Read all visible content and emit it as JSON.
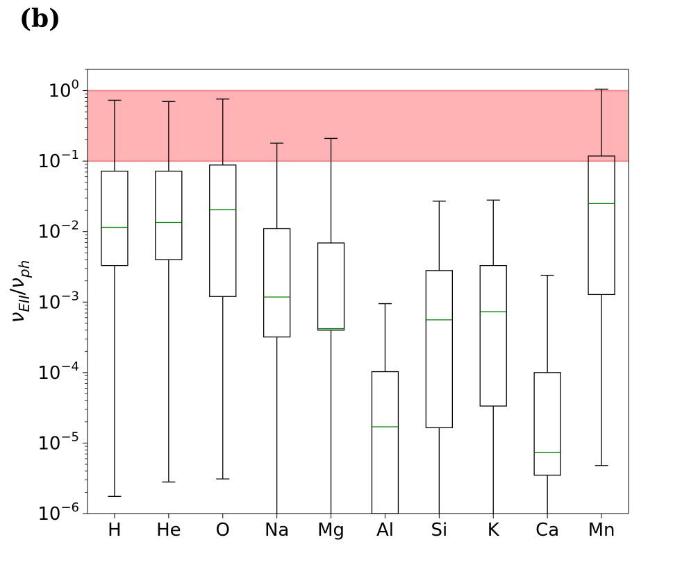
{
  "panel_label": "(b)",
  "chart_data": {
    "type": "box",
    "title": "",
    "xlabel": "",
    "ylabel": "ν_EII/ν_ph",
    "ylabel_main": "ν",
    "ylabel_sub1": "EII",
    "ylabel_slash": "/",
    "ylabel_sub2": "ph",
    "yscale": "log",
    "ylim": [
      1e-06,
      2
    ],
    "y_ticks": [
      {
        "value": 1e-06,
        "base": "10",
        "exp": "−6"
      },
      {
        "value": 1e-05,
        "base": "10",
        "exp": "−5"
      },
      {
        "value": 0.0001,
        "base": "10",
        "exp": "−4"
      },
      {
        "value": 0.001,
        "base": "10",
        "exp": "−3"
      },
      {
        "value": 0.01,
        "base": "10",
        "exp": "−2"
      },
      {
        "value": 0.1,
        "base": "10",
        "exp": "−1"
      },
      {
        "value": 1,
        "base": "10",
        "exp": "0"
      }
    ],
    "highlight_band": {
      "ymin": 0.1,
      "ymax": 1.0,
      "color": "#ffb3b5",
      "edge_color": "#f28a8e"
    },
    "box_color": "#000000",
    "median_color": "#008000",
    "categories": [
      "H",
      "He",
      "O",
      "Na",
      "Mg",
      "Al",
      "Si",
      "K",
      "Ca",
      "Mn"
    ],
    "boxes": [
      {
        "label": "H",
        "whislo": 1.75e-06,
        "q1": 0.0033,
        "med": 0.0115,
        "q3": 0.072,
        "whishi": 0.73
      },
      {
        "label": "He",
        "whislo": 2.8e-06,
        "q1": 0.004,
        "med": 0.0135,
        "q3": 0.072,
        "whishi": 0.7
      },
      {
        "label": "O",
        "whislo": 3.1e-06,
        "q1": 0.0012,
        "med": 0.0205,
        "q3": 0.088,
        "whishi": 0.76
      },
      {
        "label": "Na",
        "whislo": 1e-06,
        "q1": 0.00032,
        "med": 0.00118,
        "q3": 0.011,
        "whishi": 0.18
      },
      {
        "label": "Mg",
        "whislo": 1e-06,
        "q1": 0.0004,
        "med": 0.00042,
        "q3": 0.0069,
        "whishi": 0.21
      },
      {
        "label": "Al",
        "whislo": 1e-06,
        "q1": 1e-06,
        "med": 1.7e-05,
        "q3": 0.000103,
        "whishi": 0.00095
      },
      {
        "label": "Si",
        "whislo": 1e-06,
        "q1": 1.65e-05,
        "med": 0.00056,
        "q3": 0.0028,
        "whishi": 0.027
      },
      {
        "label": "K",
        "whislo": 1e-06,
        "q1": 3.35e-05,
        "med": 0.00073,
        "q3": 0.0033,
        "whishi": 0.028
      },
      {
        "label": "Ca",
        "whislo": 1e-06,
        "q1": 3.5e-06,
        "med": 7.3e-06,
        "q3": 0.0001,
        "whishi": 0.0024
      },
      {
        "label": "Mn",
        "whislo": 4.8e-06,
        "q1": 0.00128,
        "med": 0.025,
        "q3": 0.118,
        "whishi": 1.05
      }
    ]
  }
}
